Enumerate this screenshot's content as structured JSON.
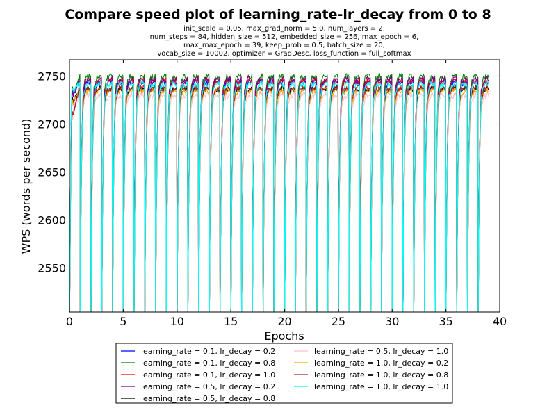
{
  "chart_data": {
    "type": "line",
    "title": "Compare speed plot of learning_rate-lr_decay from 0 to 8",
    "subtitle_lines": [
      "init_scale = 0.05, max_grad_norm = 5.0, num_layers = 2,",
      "num_steps = 84, hidden_size = 512, embedded_size = 256, max_epoch = 6,",
      "max_max_epoch = 39, keep_prob = 0.5, batch_size = 20,",
      "vocab_size = 10002, optimizer = GradDesc, loss_function = full_softmax"
    ],
    "xlabel": "Epochs",
    "ylabel": "WPS (words per second)",
    "xlim": [
      0,
      40
    ],
    "ylim": [
      2504,
      2767
    ],
    "xticks": [
      "0",
      "5",
      "10",
      "15",
      "20",
      "25",
      "30",
      "35",
      "40"
    ],
    "yticks": [
      "2550",
      "2600",
      "2650",
      "2700",
      "2750"
    ],
    "grid": false,
    "legend_position": "below-plot",
    "epochs": 39,
    "series": [
      {
        "name": "learning_rate = 0.1, lr_decay = 0.2",
        "color": "#0000ff",
        "plateau": 2744,
        "first_epoch_start": 2730
      },
      {
        "name": "learning_rate = 0.1, lr_decay = 0.8",
        "color": "#008000",
        "plateau": 2750,
        "first_epoch_start": 2728
      },
      {
        "name": "learning_rate = 0.1, lr_decay = 1.0",
        "color": "#ff0000",
        "plateau": 2745,
        "first_epoch_start": 2700
      },
      {
        "name": "learning_rate = 0.5, lr_decay = 0.2",
        "color": "#800080",
        "plateau": 2747,
        "first_epoch_start": 2725
      },
      {
        "name": "learning_rate = 0.5, lr_decay = 0.8",
        "color": "#000000",
        "plateau": 2737,
        "first_epoch_start": 2720
      },
      {
        "name": "learning_rate = 0.5, lr_decay = 1.0",
        "color": "#ffc0cb",
        "plateau": 2730,
        "first_epoch_start": 2715
      },
      {
        "name": "learning_rate = 1.0, lr_decay = 0.2",
        "color": "#ffa500",
        "plateau": 2735,
        "first_epoch_start": 2718
      },
      {
        "name": "learning_rate = 1.0, lr_decay = 0.8",
        "color": "#a52a2a",
        "plateau": 2738,
        "first_epoch_start": 2705
      },
      {
        "name": "learning_rate = 1.0, lr_decay = 1.0",
        "color": "#00ffff",
        "plateau": 2742,
        "first_epoch_start": 2732
      }
    ]
  }
}
